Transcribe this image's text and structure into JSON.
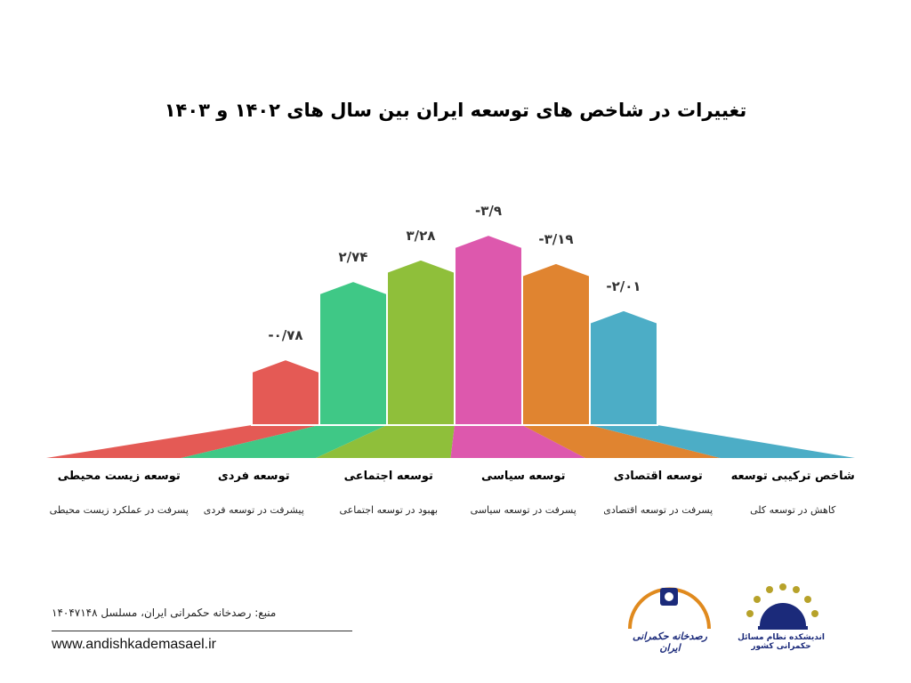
{
  "chart_data": {
    "type": "bar",
    "title": "تغییرات در شاخص های توسعه ایران بین سال های ۱۴۰۲ و ۱۴۰۳",
    "categories": [
      {
        "name": "توسعه زیست محیطی",
        "description": "پسرفت در عملکرد زیست محیطی",
        "value": -0.78,
        "label": "-۰/۷۸",
        "color": "#e45a55"
      },
      {
        "name": "توسعه فردی",
        "description": "پیشرفت در توسعه فردی",
        "value": 2.74,
        "label": "۲/۷۴",
        "color": "#3fc886"
      },
      {
        "name": "توسعه اجتماعی",
        "description": "بهبود در توسعه اجتماعی",
        "value": 3.28,
        "label": "۳/۲۸",
        "color": "#8fbf3a"
      },
      {
        "name": "توسعه سیاسی",
        "description": "پسرفت در توسعه سیاسی",
        "value": -3.9,
        "label": "-۳/۹",
        "color": "#dd58ad"
      },
      {
        "name": "توسعه اقتصادی",
        "description": "پسرفت در توسعه اقتصادی",
        "value": -3.19,
        "label": "-۳/۱۹",
        "color": "#e08430"
      },
      {
        "name": "شاخص ترکیبی توسعه",
        "description": "کاهش در توسعه کلی",
        "value": -2.01,
        "label": "-۲/۰۱",
        "color": "#4cadc6"
      }
    ]
  },
  "footer": {
    "source": "منبع: رصدخانه حکمرانی ایران، مسلسل ۱۴۰۴۷۱۴۸",
    "website": "www.andishkademasael.ir"
  },
  "logos": {
    "observatory": "رصدخانه حکمرانی ایران",
    "thinktank": "اندیشکده نظام مسائل حکمرانی کشور"
  }
}
